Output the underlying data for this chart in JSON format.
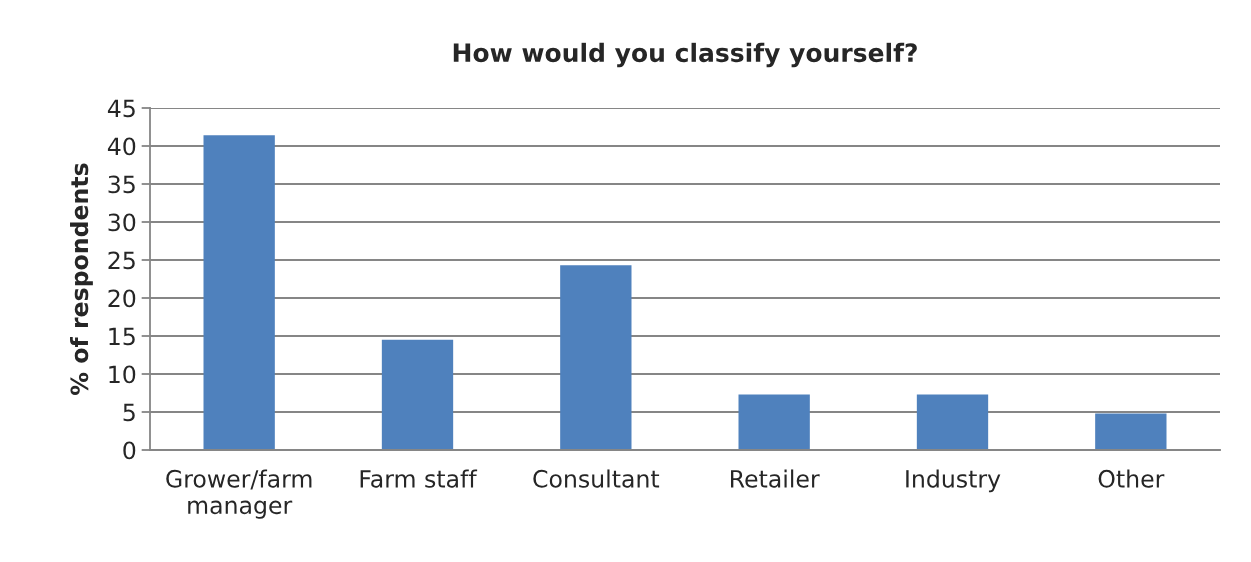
{
  "chart_data": {
    "type": "bar",
    "title": "How would you classify yourself?",
    "ylabel": "% of respondents",
    "categories": [
      "Grower/farm\nmanager",
      "Farm staff",
      "Consultant",
      "Retailer",
      "Industry",
      "Other"
    ],
    "values": [
      41.4,
      14.5,
      24.3,
      7.3,
      7.3,
      4.8
    ],
    "color": "#4f81bd",
    "ylim": [
      0,
      45
    ],
    "yticks": [
      0,
      5,
      10,
      15,
      20,
      25,
      30,
      35,
      40,
      45
    ],
    "grid": "y"
  }
}
